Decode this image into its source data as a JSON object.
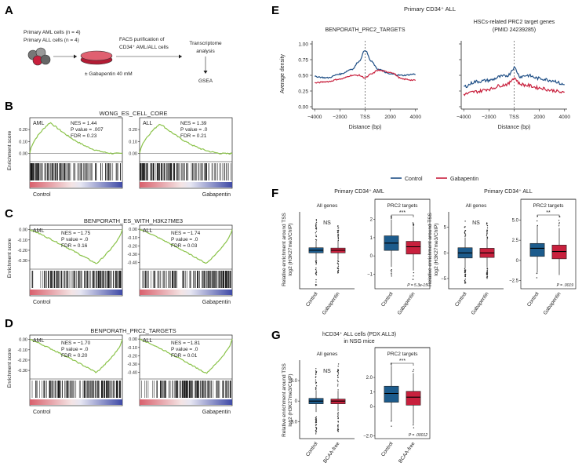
{
  "colors": {
    "control": "#1f4f86",
    "gabapentin": "#c8203d",
    "gsea_curve": "#8bc34a",
    "ctrl_box": "#1c5b8c",
    "gaba_box": "#c8203d"
  },
  "panels": {
    "A": "A",
    "B": "B",
    "C": "C",
    "D": "D",
    "E": "E",
    "F": "F",
    "G": "G"
  },
  "panelA": {
    "cells_aml": "Primary AML cells (n = 4)",
    "cells_all": "Primary ALL cells (n = 4)",
    "facs_line1": "FACS purification of",
    "facs_line2": "CD34⁺ AML/ALL cells",
    "treatment": "± Gabapentin 40 mM",
    "trans1": "Transcriptome",
    "trans2": "analysis",
    "gsea": "GSEA"
  },
  "gsea_panels": [
    {
      "title": "WONG_ES_CELL_CORE",
      "ylabel": "Enrichment score",
      "xleft": "Control",
      "xright": "Gabapentin",
      "plots": [
        {
          "label": "AML",
          "nes": "NES = 1.44",
          "pval": "P value = .007",
          "fdr": "FDR = 0.23",
          "ticks": [
            "0.20",
            "0.10",
            "0.00"
          ],
          "chart_data": {
            "type": "line",
            "shape": "positive",
            "ylim": [
              -0.05,
              0.28
            ],
            "peak": 0.26
          }
        },
        {
          "label": "ALL",
          "nes": "NES = 1.39",
          "pval": "P value = .0",
          "fdr": "FDR = 0.21",
          "ticks": [
            "0.20",
            "0.10",
            "0.00"
          ],
          "chart_data": {
            "type": "line",
            "shape": "positive",
            "ylim": [
              -0.05,
              0.28
            ],
            "peak": 0.25
          }
        }
      ]
    },
    {
      "title": "BENPORATH_ES_WITH_H3K27ME3",
      "ylabel": "Enrichment score",
      "xleft": "Control",
      "xright": "Gabapentin",
      "plots": [
        {
          "label": "AML",
          "nes": "NES = −1.75",
          "pval": "P value = .0",
          "fdr": "FDR = 0.16",
          "ticks": [
            "0.00",
            "-0.10",
            "-0.20",
            "-0.30"
          ],
          "chart_data": {
            "type": "line",
            "shape": "negative",
            "ylim": [
              -0.36,
              0.02
            ],
            "trough": -0.33
          }
        },
        {
          "label": "ALL",
          "nes": "NES = −1.74",
          "pval": "P value = .0",
          "fdr": "FDR = 0.03",
          "ticks": [
            "0.00",
            "-0.10",
            "-0.20",
            "-0.30",
            "-0.40"
          ],
          "chart_data": {
            "type": "line",
            "shape": "negative",
            "ylim": [
              -0.45,
              0.02
            ],
            "trough": -0.41
          }
        }
      ]
    },
    {
      "title": "BENPORATH_PRC2_TARGETS",
      "ylabel": "Enrichment score",
      "xleft": "Control",
      "xright": "Gabapentin",
      "plots": [
        {
          "label": "AML",
          "nes": "NES = −1.70",
          "pval": "P value = .0",
          "fdr": "FDR = 0.20",
          "ticks": [
            "0.00",
            "-0.10",
            "-0.20",
            "-0.30"
          ],
          "chart_data": {
            "type": "line",
            "shape": "negative",
            "ylim": [
              -0.36,
              0.02
            ],
            "trough": -0.32
          }
        },
        {
          "label": "ALL",
          "nes": "NES = −1.81",
          "pval": "P value = .0",
          "fdr": "FDR = 0.01",
          "ticks": [
            "0.00",
            "-0.10",
            "-0.20",
            "-0.30",
            "-0.40"
          ],
          "chart_data": {
            "type": "line",
            "shape": "negative",
            "ylim": [
              -0.45,
              0.02
            ],
            "trough": -0.41
          }
        }
      ]
    }
  ],
  "panelE": {
    "title": "Primary CD34⁺ ALL",
    "ylabel": "Average density",
    "xlabel": "Distance (bp)",
    "legend_control": "Control",
    "legend_gabapentin": "Gabapentin",
    "plots": [
      {
        "title1": "BENPORATH_PRC2_TARGETS",
        "title2": "",
        "yticks": [
          "1.00",
          "0.75",
          "0.50",
          "0.25",
          "0.00"
        ],
        "xticks": [
          "−4000",
          "−2000",
          "TSS",
          "2000",
          "4000"
        ],
        "chart_data": {
          "type": "line",
          "x": [
            -4000,
            -3000,
            -2000,
            -1000,
            -500,
            0,
            500,
            1000,
            2000,
            3000,
            4000
          ],
          "series": [
            {
              "name": "Control",
              "values": [
                0.48,
                0.46,
                0.52,
                0.6,
                0.72,
                0.9,
                0.72,
                0.6,
                0.52,
                0.5,
                0.52
              ]
            },
            {
              "name": "Gabapentin",
              "values": [
                0.38,
                0.4,
                0.44,
                0.5,
                0.5,
                0.46,
                0.52,
                0.58,
                0.55,
                0.44,
                0.42
              ]
            }
          ],
          "ylim": [
            0,
            1.05
          ],
          "xlim": [
            -4200,
            4200
          ]
        }
      },
      {
        "title1": "HSCs-related PRC2 target genes",
        "title2": "(PMID 24239285)",
        "yticks": [
          "",
          "",
          "",
          "",
          ""
        ],
        "xticks": [
          "−4000",
          "−2000",
          "TSS",
          "2000",
          "4000"
        ],
        "chart_data": {
          "type": "line",
          "x": [
            -4000,
            -3000,
            -2000,
            -1000,
            -500,
            0,
            500,
            1000,
            2000,
            3000,
            4000
          ],
          "series": [
            {
              "name": "Control",
              "values": [
                0.32,
                0.4,
                0.42,
                0.48,
                0.5,
                0.62,
                0.48,
                0.5,
                0.45,
                0.42,
                0.35
              ]
            },
            {
              "name": "Gabapentin",
              "values": [
                0.2,
                0.24,
                0.28,
                0.34,
                0.36,
                0.46,
                0.36,
                0.34,
                0.3,
                0.26,
                0.22
              ]
            }
          ],
          "ylim": [
            0,
            1.05
          ],
          "xlim": [
            -4200,
            4200
          ]
        }
      }
    ]
  },
  "panelF": {
    "aml_title": "Primary CD34⁺ AML",
    "all_title": "Primary CD34⁺ ALL",
    "ylabel1": "Relative enrichment around TSS",
    "ylabel2": "log2 (H3K27me3/ChIP)",
    "sub_all": "All genes",
    "sub_prc2": "PRC2 targets",
    "xticks": [
      "Control",
      "Gabapentin"
    ],
    "ns": "NS",
    "sig_aml": "***",
    "sig_all": "**",
    "p_aml": "P = 5.3e-15",
    "p_all": "P = .0019",
    "aml_prc2_ticks": [
      "2",
      "1",
      "0",
      "−1"
    ],
    "all_allgenes_ticks": [
      "5",
      "0",
      "−5"
    ],
    "all_prc2_ticks": [
      "5.0",
      "2.5",
      "0",
      "−2.5"
    ]
  },
  "panelG": {
    "title1": "hCD34⁺ ALL cells (PDX ALL3)",
    "title2": "in NSG mice",
    "sub_all": "All genes",
    "sub_prc2": "PRC2 targets",
    "xticks": [
      "Control",
      "BCAA-free"
    ],
    "ns": "NS",
    "sig": "***",
    "pval": "P = .00012",
    "allgenes_ticks": [
      "3.0",
      "0",
      "−3.0"
    ],
    "prc2_ticks": [
      "2.0",
      "1",
      "0",
      "−2.0"
    ]
  }
}
